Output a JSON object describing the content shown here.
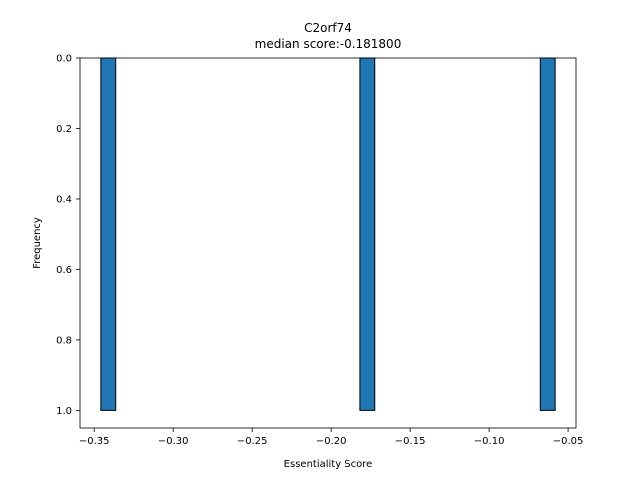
{
  "chart_data": {
    "type": "bar",
    "title": "C2orf74",
    "subtitle": "median score:-0.181800",
    "xlabel": "Essentiality Score",
    "ylabel": "Frequency",
    "xlim": [
      -0.359,
      -0.045
    ],
    "ylim": [
      1.05,
      0.0
    ],
    "y_inverted": true,
    "grid": false,
    "x_ticks": [
      -0.35,
      -0.3,
      -0.25,
      -0.2,
      -0.15,
      -0.1,
      -0.05
    ],
    "x_tick_labels": [
      "−0.35",
      "−0.30",
      "−0.25",
      "−0.20",
      "−0.15",
      "−0.10",
      "−0.05"
    ],
    "y_ticks": [
      0.0,
      0.2,
      0.4,
      0.6,
      0.8,
      1.0
    ],
    "y_tick_labels": [
      "0.0",
      "0.2",
      "0.4",
      "0.6",
      "0.8",
      "1.0"
    ],
    "bar_color": "#1f77b4",
    "edge_color": "#000000",
    "bins": [
      {
        "x0": -0.3458,
        "x1": -0.3364,
        "value": 1
      },
      {
        "x0": -0.1818,
        "x1": -0.1724,
        "value": 1
      },
      {
        "x0": -0.0676,
        "x1": -0.0582,
        "value": 1
      }
    ]
  }
}
